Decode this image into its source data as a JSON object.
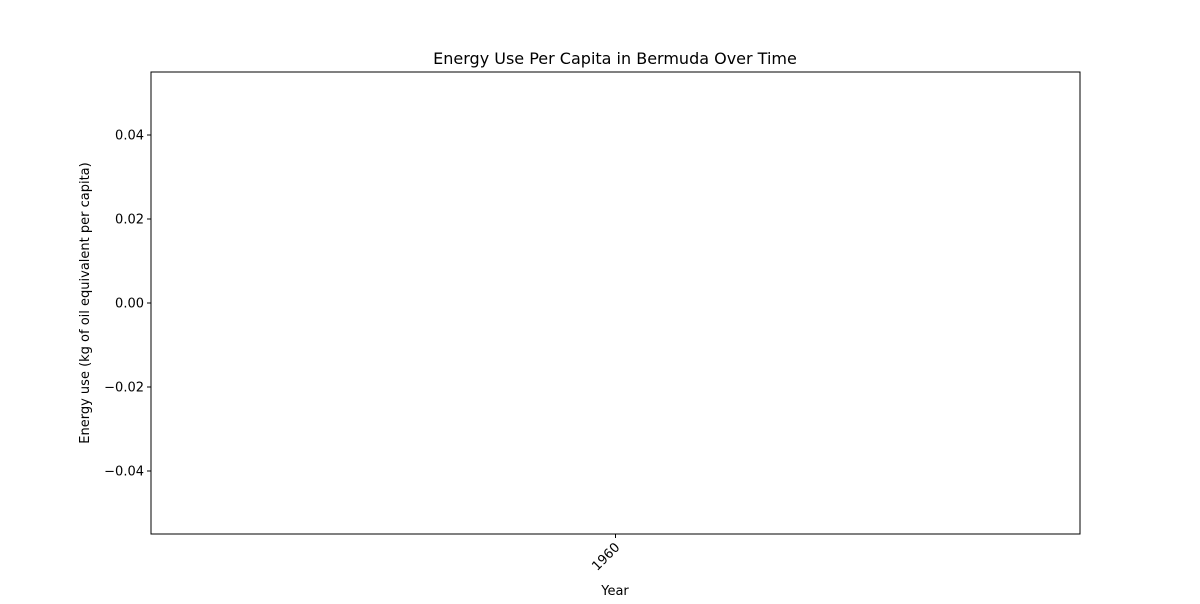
{
  "chart_data": {
    "type": "line",
    "title": "Energy Use Per Capita in Bermuda Over Time",
    "xlabel": "Year",
    "ylabel": "Energy use (kg of oil equivalent per capita)",
    "x_ticks": [
      "1960"
    ],
    "x_categories": [
      "1960"
    ],
    "ylim": [
      -0.055,
      0.055
    ],
    "y_ticks": [
      0.04,
      0.02,
      0.0,
      -0.02,
      -0.04
    ],
    "y_tick_labels": [
      "0.04",
      "0.02",
      "0.00",
      "−0.02",
      "−0.04"
    ],
    "x_tick_rotation_deg": 45,
    "grid": false,
    "series": [
      {
        "x": [
          "1960"
        ],
        "values": [
          null
        ]
      }
    ],
    "colors": {
      "axis": "#000000",
      "background": "#ffffff",
      "line": "#1f77b4"
    }
  }
}
